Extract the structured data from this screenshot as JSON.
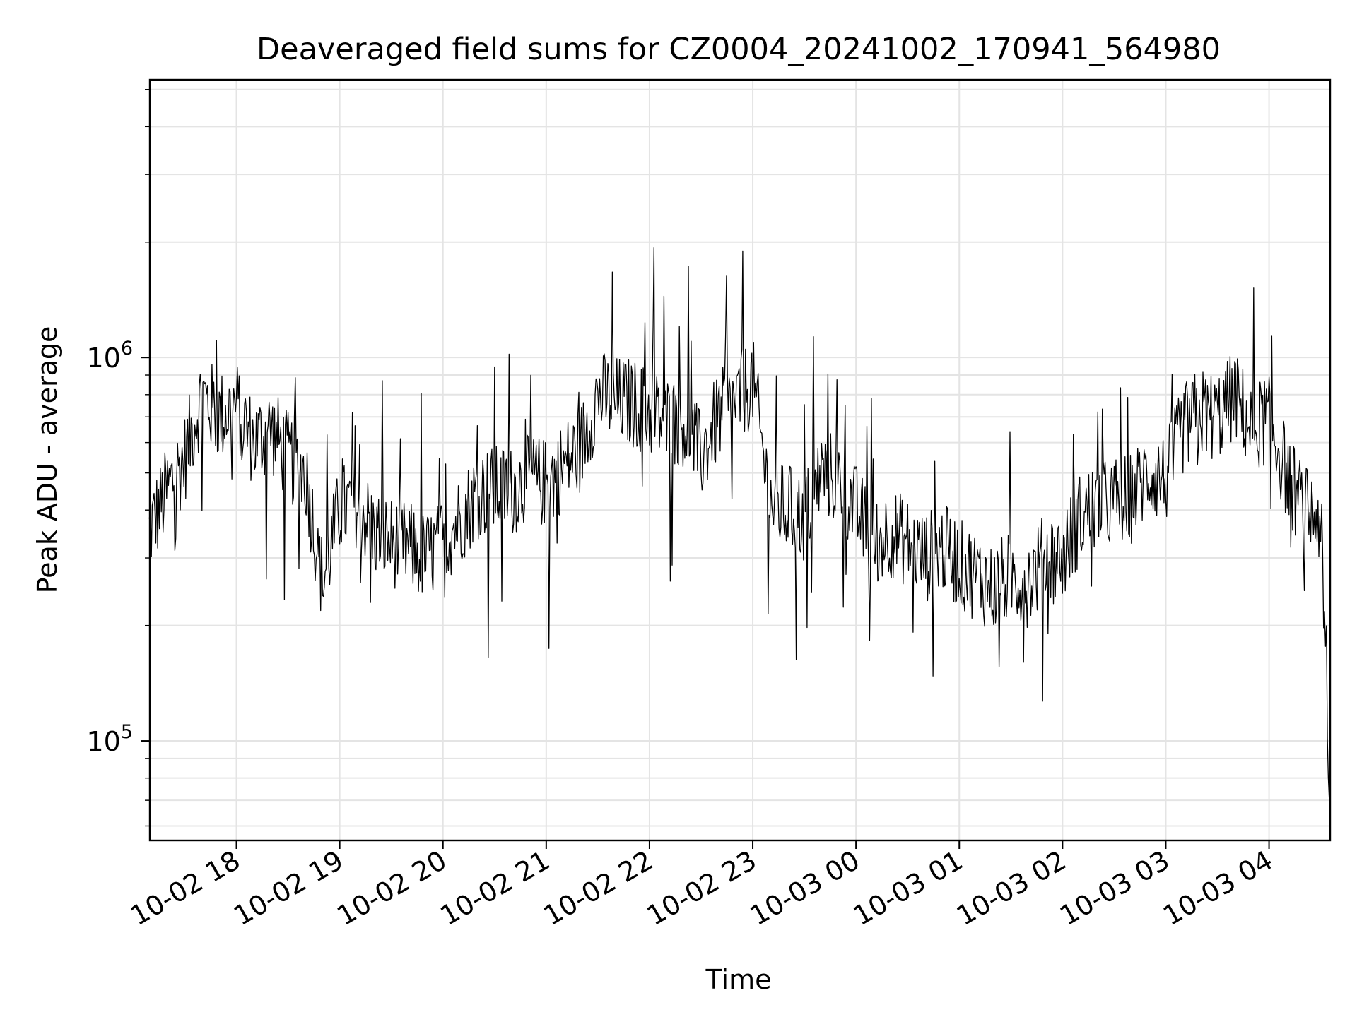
{
  "chart_data": {
    "type": "line",
    "title": "Deaveraged field sums for CZ0004_20241002_170941_564980",
    "xlabel": "Time",
    "ylabel": "Peak ADU - average",
    "yscale": "log",
    "grid": true,
    "xlim": [
      "2024-10-02 17:09:41",
      "2024-10-03 04:35:30"
    ],
    "ylim": [
      55000,
      5300000
    ],
    "x_ticks": [
      {
        "time": "2024-10-02 18:00",
        "label": "10-02 18"
      },
      {
        "time": "2024-10-02 19:00",
        "label": "10-02 19"
      },
      {
        "time": "2024-10-02 20:00",
        "label": "10-02 20"
      },
      {
        "time": "2024-10-02 21:00",
        "label": "10-02 21"
      },
      {
        "time": "2024-10-02 22:00",
        "label": "10-02 22"
      },
      {
        "time": "2024-10-02 23:00",
        "label": "10-02 23"
      },
      {
        "time": "2024-10-03 00:00",
        "label": "10-03 00"
      },
      {
        "time": "2024-10-03 01:00",
        "label": "10-03 01"
      },
      {
        "time": "2024-10-03 02:00",
        "label": "10-03 02"
      },
      {
        "time": "2024-10-03 03:00",
        "label": "10-03 03"
      },
      {
        "time": "2024-10-03 04:00",
        "label": "10-03 04"
      }
    ],
    "y_ticks": [
      {
        "value": 100000,
        "base": "10",
        "exp": "5"
      },
      {
        "value": 1000000,
        "base": "10",
        "exp": "6"
      }
    ],
    "series": [
      {
        "color": "#000000",
        "note_x": "times",
        "x": [
          "2024-10-02 17:09",
          "2024-10-02 17:20",
          "2024-10-02 17:30",
          "2024-10-02 17:40",
          "2024-10-02 17:50",
          "2024-10-02 18:00",
          "2024-10-02 18:10",
          "2024-10-02 18:20",
          "2024-10-02 18:30",
          "2024-10-02 18:40",
          "2024-10-02 18:50",
          "2024-10-02 19:00",
          "2024-10-02 19:10",
          "2024-10-02 19:20",
          "2024-10-02 19:30",
          "2024-10-02 19:40",
          "2024-10-02 19:50",
          "2024-10-02 20:00",
          "2024-10-02 20:10",
          "2024-10-02 20:20",
          "2024-10-02 20:30",
          "2024-10-02 20:40",
          "2024-10-02 20:50",
          "2024-10-02 21:00",
          "2024-10-02 21:10",
          "2024-10-02 21:20",
          "2024-10-02 21:30",
          "2024-10-02 21:40",
          "2024-10-02 21:50",
          "2024-10-02 22:00",
          "2024-10-02 22:10",
          "2024-10-02 22:20",
          "2024-10-02 22:30",
          "2024-10-02 22:40",
          "2024-10-02 22:50",
          "2024-10-02 23:00",
          "2024-10-02 23:10",
          "2024-10-02 23:20",
          "2024-10-02 23:30",
          "2024-10-02 23:40",
          "2024-10-02 23:50",
          "2024-10-03 00:00",
          "2024-10-03 00:10",
          "2024-10-03 00:20",
          "2024-10-03 00:30",
          "2024-10-03 00:40",
          "2024-10-03 00:50",
          "2024-10-03 01:00",
          "2024-10-03 01:10",
          "2024-10-03 01:20",
          "2024-10-03 01:30",
          "2024-10-03 01:40",
          "2024-10-03 01:50",
          "2024-10-03 02:00",
          "2024-10-03 02:10",
          "2024-10-03 02:20",
          "2024-10-03 02:30",
          "2024-10-03 02:40",
          "2024-10-03 02:50",
          "2024-10-03 03:00",
          "2024-10-03 03:10",
          "2024-10-03 03:20",
          "2024-10-03 03:30",
          "2024-10-03 03:40",
          "2024-10-03 03:50",
          "2024-10-03 04:00",
          "2024-10-03 04:10",
          "2024-10-03 04:20",
          "2024-10-03 04:30",
          "2024-10-03 04:35"
        ],
        "y": [
          350000,
          450000,
          550000,
          800000,
          700000,
          750000,
          600000,
          650000,
          550000,
          500000,
          260000,
          400000,
          420000,
          350000,
          330000,
          320000,
          300000,
          330000,
          380000,
          440000,
          450000,
          450000,
          480000,
          470000,
          520000,
          580000,
          800000,
          770000,
          760000,
          720000,
          680000,
          680000,
          550000,
          700000,
          760000,
          870000,
          420000,
          400000,
          380000,
          500000,
          480000,
          400000,
          330000,
          350000,
          330000,
          300000,
          320000,
          290000,
          270000,
          250000,
          270000,
          260000,
          300000,
          300000,
          380000,
          410000,
          420000,
          430000,
          500000,
          480000,
          650000,
          720000,
          700000,
          800000,
          650000,
          700000,
          500000,
          400000,
          380000,
          70000
        ]
      }
    ]
  }
}
